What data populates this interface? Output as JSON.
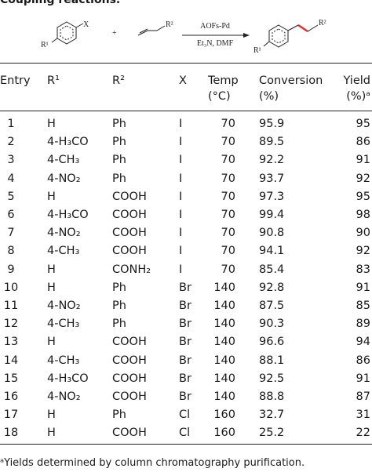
{
  "caption": "Coupling reactions.",
  "scheme": {
    "reactant1_substituent": "R¹",
    "reactant1_group": "X",
    "plus": "+",
    "reactant2_substituent": "R²",
    "reagent": "AOFs-Pd",
    "conditions": "Et₃N, DMF",
    "product_substituent1": "R¹",
    "product_substituent2": "R²"
  },
  "table": {
    "header": [
      [
        "Entry"
      ],
      [
        "R¹"
      ],
      [
        "R²"
      ],
      [
        "X"
      ],
      [
        "Temp",
        "(°C)"
      ],
      [
        "Conversion",
        "(%)"
      ],
      [
        "Yield",
        "(%)ᵃ"
      ]
    ],
    "rows": [
      [
        "1",
        "H",
        "Ph",
        "I",
        "70",
        "95.9",
        "95"
      ],
      [
        "2",
        "4-H₃CO",
        "Ph",
        "I",
        "70",
        "89.5",
        "86"
      ],
      [
        "3",
        "4-CH₃",
        "Ph",
        "I",
        "70",
        "92.2",
        "91"
      ],
      [
        "4",
        "4-NO₂",
        "Ph",
        "I",
        "70",
        "93.7",
        "92"
      ],
      [
        "5",
        "H",
        "COOH",
        "I",
        "70",
        "97.3",
        "95"
      ],
      [
        "6",
        "4-H₃CO",
        "COOH",
        "I",
        "70",
        "99.4",
        "98"
      ],
      [
        "7",
        "4-NO₂",
        "COOH",
        "I",
        "70",
        "90.8",
        "90"
      ],
      [
        "8",
        "4-CH₃",
        "COOH",
        "I",
        "70",
        "94.1",
        "92"
      ],
      [
        "9",
        "H",
        "CONH₂",
        "I",
        "70",
        "85.4",
        "83"
      ],
      [
        "10",
        "H",
        "Ph",
        "Br",
        "140",
        "92.8",
        "91"
      ],
      [
        "11",
        "4-NO₂",
        "Ph",
        "Br",
        "140",
        "87.5",
        "85"
      ],
      [
        "12",
        "4-CH₃",
        "Ph",
        "Br",
        "140",
        "90.3",
        "89"
      ],
      [
        "13",
        "H",
        "COOH",
        "Br",
        "140",
        "96.6",
        "94"
      ],
      [
        "14",
        "4-CH₃",
        "COOH",
        "Br",
        "140",
        "88.1",
        "86"
      ],
      [
        "15",
        "4-H₃CO",
        "COOH",
        "Br",
        "140",
        "92.5",
        "91"
      ],
      [
        "16",
        "4-NO₂",
        "COOH",
        "Br",
        "140",
        "88.8",
        "87"
      ],
      [
        "17",
        "H",
        "Ph",
        "Cl",
        "160",
        "32.7",
        "31"
      ],
      [
        "18",
        "H",
        "COOH",
        "Cl",
        "160",
        "25.2",
        "22"
      ]
    ]
  },
  "footnote": "ᵃYields determined by column chromatography purification."
}
